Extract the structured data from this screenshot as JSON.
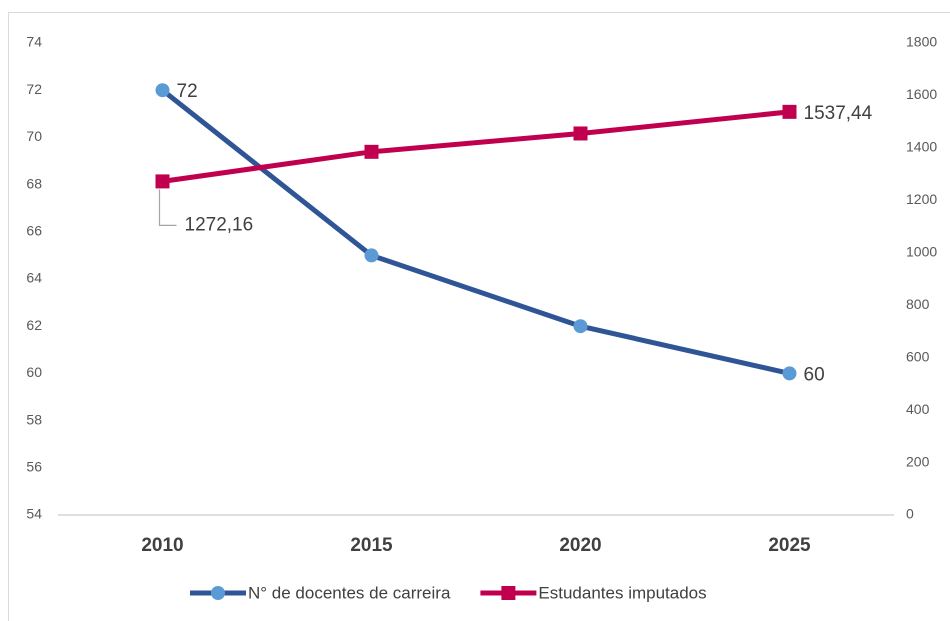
{
  "chart_data": {
    "type": "line",
    "categories": [
      "2010",
      "2015",
      "2020",
      "2025"
    ],
    "series": [
      {
        "name": "N° de docentes de carreira",
        "color": "#2f5597",
        "marker_color": "#5b9bd5",
        "marker": "circle",
        "values": [
          72,
          65,
          62,
          60
        ],
        "value_labels": [
          "72",
          null,
          null,
          "60"
        ]
      },
      {
        "name": "Estudantes imputados",
        "color": "#c0004f",
        "marker_color": "#c0004f",
        "marker": "square",
        "axis": "y2",
        "values": [
          1272.16,
          1385,
          1455,
          1537.44
        ],
        "value_labels": [
          "1272,16",
          null,
          null,
          "1537,44"
        ]
      }
    ],
    "ylim": [
      54,
      74
    ],
    "yticks": [
      54,
      56,
      58,
      60,
      62,
      64,
      66,
      68,
      70,
      72,
      74
    ],
    "y2lim": [
      0,
      1800
    ],
    "y2ticks": [
      0,
      200,
      400,
      600,
      800,
      1000,
      1200,
      1400,
      1600,
      1800
    ],
    "legend": "bottom"
  }
}
